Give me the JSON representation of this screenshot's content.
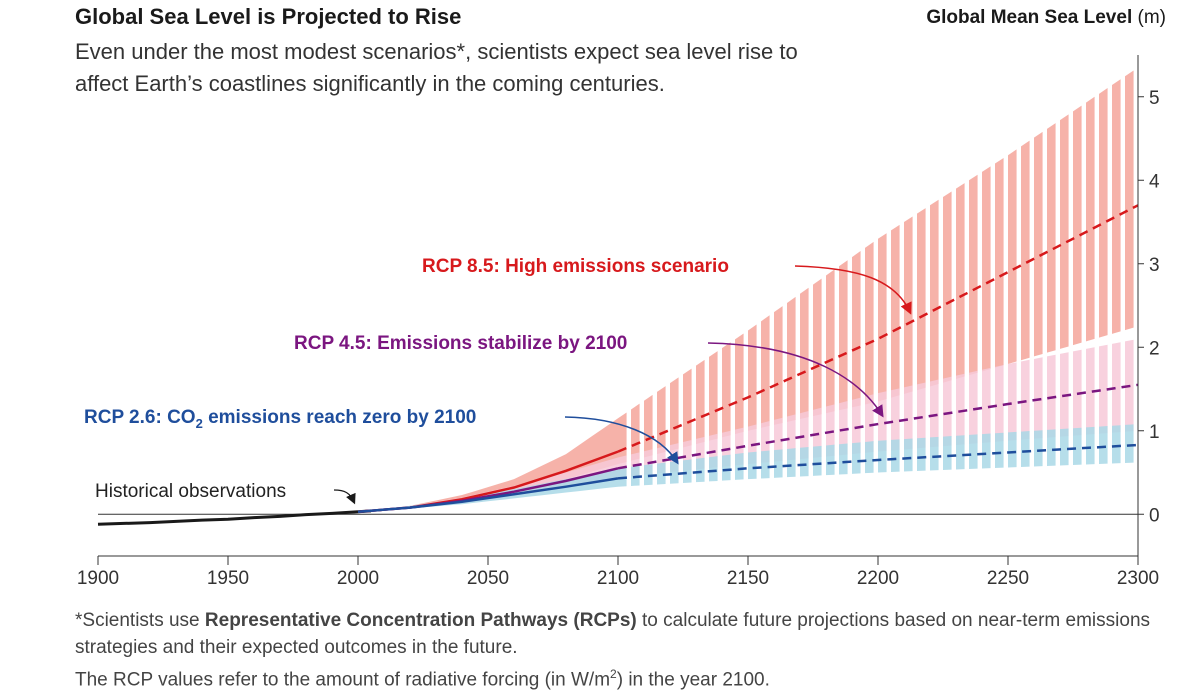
{
  "title": "Global Sea Level is Projected to Rise",
  "subtitle": "Even under the most modest scenarios*, scientists expect sea level rise to affect Earth’s coastlines significantly in the coming centuries.",
  "y_axis_title": "Global Mean Sea Level",
  "y_axis_unit": "(m)",
  "footnote": {
    "line1_a": "*Scientists use ",
    "line1_bold": "Representative Concentration Pathways (RCPs)",
    "line1_b": " to calculate future projections based on near-term emissions strategies and their expected outcomes in the future.",
    "line2_a": "The RCP values refer to the amount of radiative forcing (in W/m",
    "line2_sup": "2",
    "line2_b": ") in the year 2100."
  },
  "chart_data": {
    "type": "area",
    "xlim": [
      1900,
      2300
    ],
    "ylim": [
      -0.5,
      5.5
    ],
    "x_ticks": [
      "1900",
      "1950",
      "2000",
      "2050",
      "2100",
      "2150",
      "2200",
      "2250",
      "2300"
    ],
    "y_ticks": [
      "0",
      "1",
      "2",
      "3",
      "4",
      "5"
    ],
    "colors": {
      "rcp85": "#d7191c",
      "rcp85_band": "#f4a49a",
      "rcp45": "#7b1680",
      "rcp45_band": "#f7c9d8",
      "rcp26": "#1f4e9c",
      "rcp26_band": "#a9d8e6",
      "historical": "#1a1a1a"
    },
    "series": [
      {
        "key": "historical",
        "label": "Historical observations",
        "x": [
          1900,
          1910,
          1920,
          1930,
          1940,
          1950,
          1960,
          1970,
          1980,
          1990,
          2000,
          2005
        ],
        "y": [
          -0.12,
          -0.11,
          -0.1,
          -0.085,
          -0.07,
          -0.06,
          -0.04,
          -0.025,
          -0.005,
          0.01,
          0.03,
          0.04
        ]
      },
      {
        "key": "rcp85",
        "label_a": "RCP 8.5: High emissions scenario",
        "x": [
          2000,
          2020,
          2040,
          2060,
          2080,
          2100,
          2150,
          2200,
          2250,
          2300
        ],
        "y": [
          0.03,
          0.08,
          0.18,
          0.32,
          0.52,
          0.75,
          1.4,
          2.1,
          2.9,
          3.7
        ],
        "band_low": [
          0.03,
          0.07,
          0.15,
          0.26,
          0.42,
          0.6,
          1.0,
          1.35,
          1.8,
          2.25
        ],
        "band_high": [
          0.03,
          0.1,
          0.23,
          0.42,
          0.72,
          1.15,
          2.2,
          3.3,
          4.3,
          5.35
        ]
      },
      {
        "key": "rcp45",
        "label_a": "RCP 4.5: Emissions stabilize by 2100",
        "x": [
          2000,
          2020,
          2040,
          2060,
          2080,
          2100,
          2150,
          2200,
          2250,
          2300
        ],
        "y": [
          0.03,
          0.08,
          0.16,
          0.27,
          0.4,
          0.55,
          0.82,
          1.08,
          1.32,
          1.55
        ],
        "band_low": [
          0.03,
          0.07,
          0.13,
          0.22,
          0.33,
          0.44,
          0.6,
          0.75,
          0.88,
          1.0
        ],
        "band_high": [
          0.03,
          0.1,
          0.2,
          0.34,
          0.5,
          0.68,
          1.05,
          1.45,
          1.8,
          2.1
        ]
      },
      {
        "key": "rcp26",
        "label_a": "RCP 2.6: CO",
        "label_sub": "2",
        "label_b": " emissions reach zero by 2100",
        "x": [
          2000,
          2020,
          2040,
          2060,
          2080,
          2100,
          2150,
          2200,
          2250,
          2300
        ],
        "y": [
          0.03,
          0.08,
          0.15,
          0.24,
          0.33,
          0.43,
          0.55,
          0.65,
          0.74,
          0.83
        ],
        "band_low": [
          0.03,
          0.07,
          0.12,
          0.19,
          0.26,
          0.33,
          0.42,
          0.5,
          0.56,
          0.62
        ],
        "band_high": [
          0.03,
          0.1,
          0.19,
          0.3,
          0.42,
          0.55,
          0.74,
          0.88,
          0.98,
          1.08
        ]
      }
    ]
  }
}
